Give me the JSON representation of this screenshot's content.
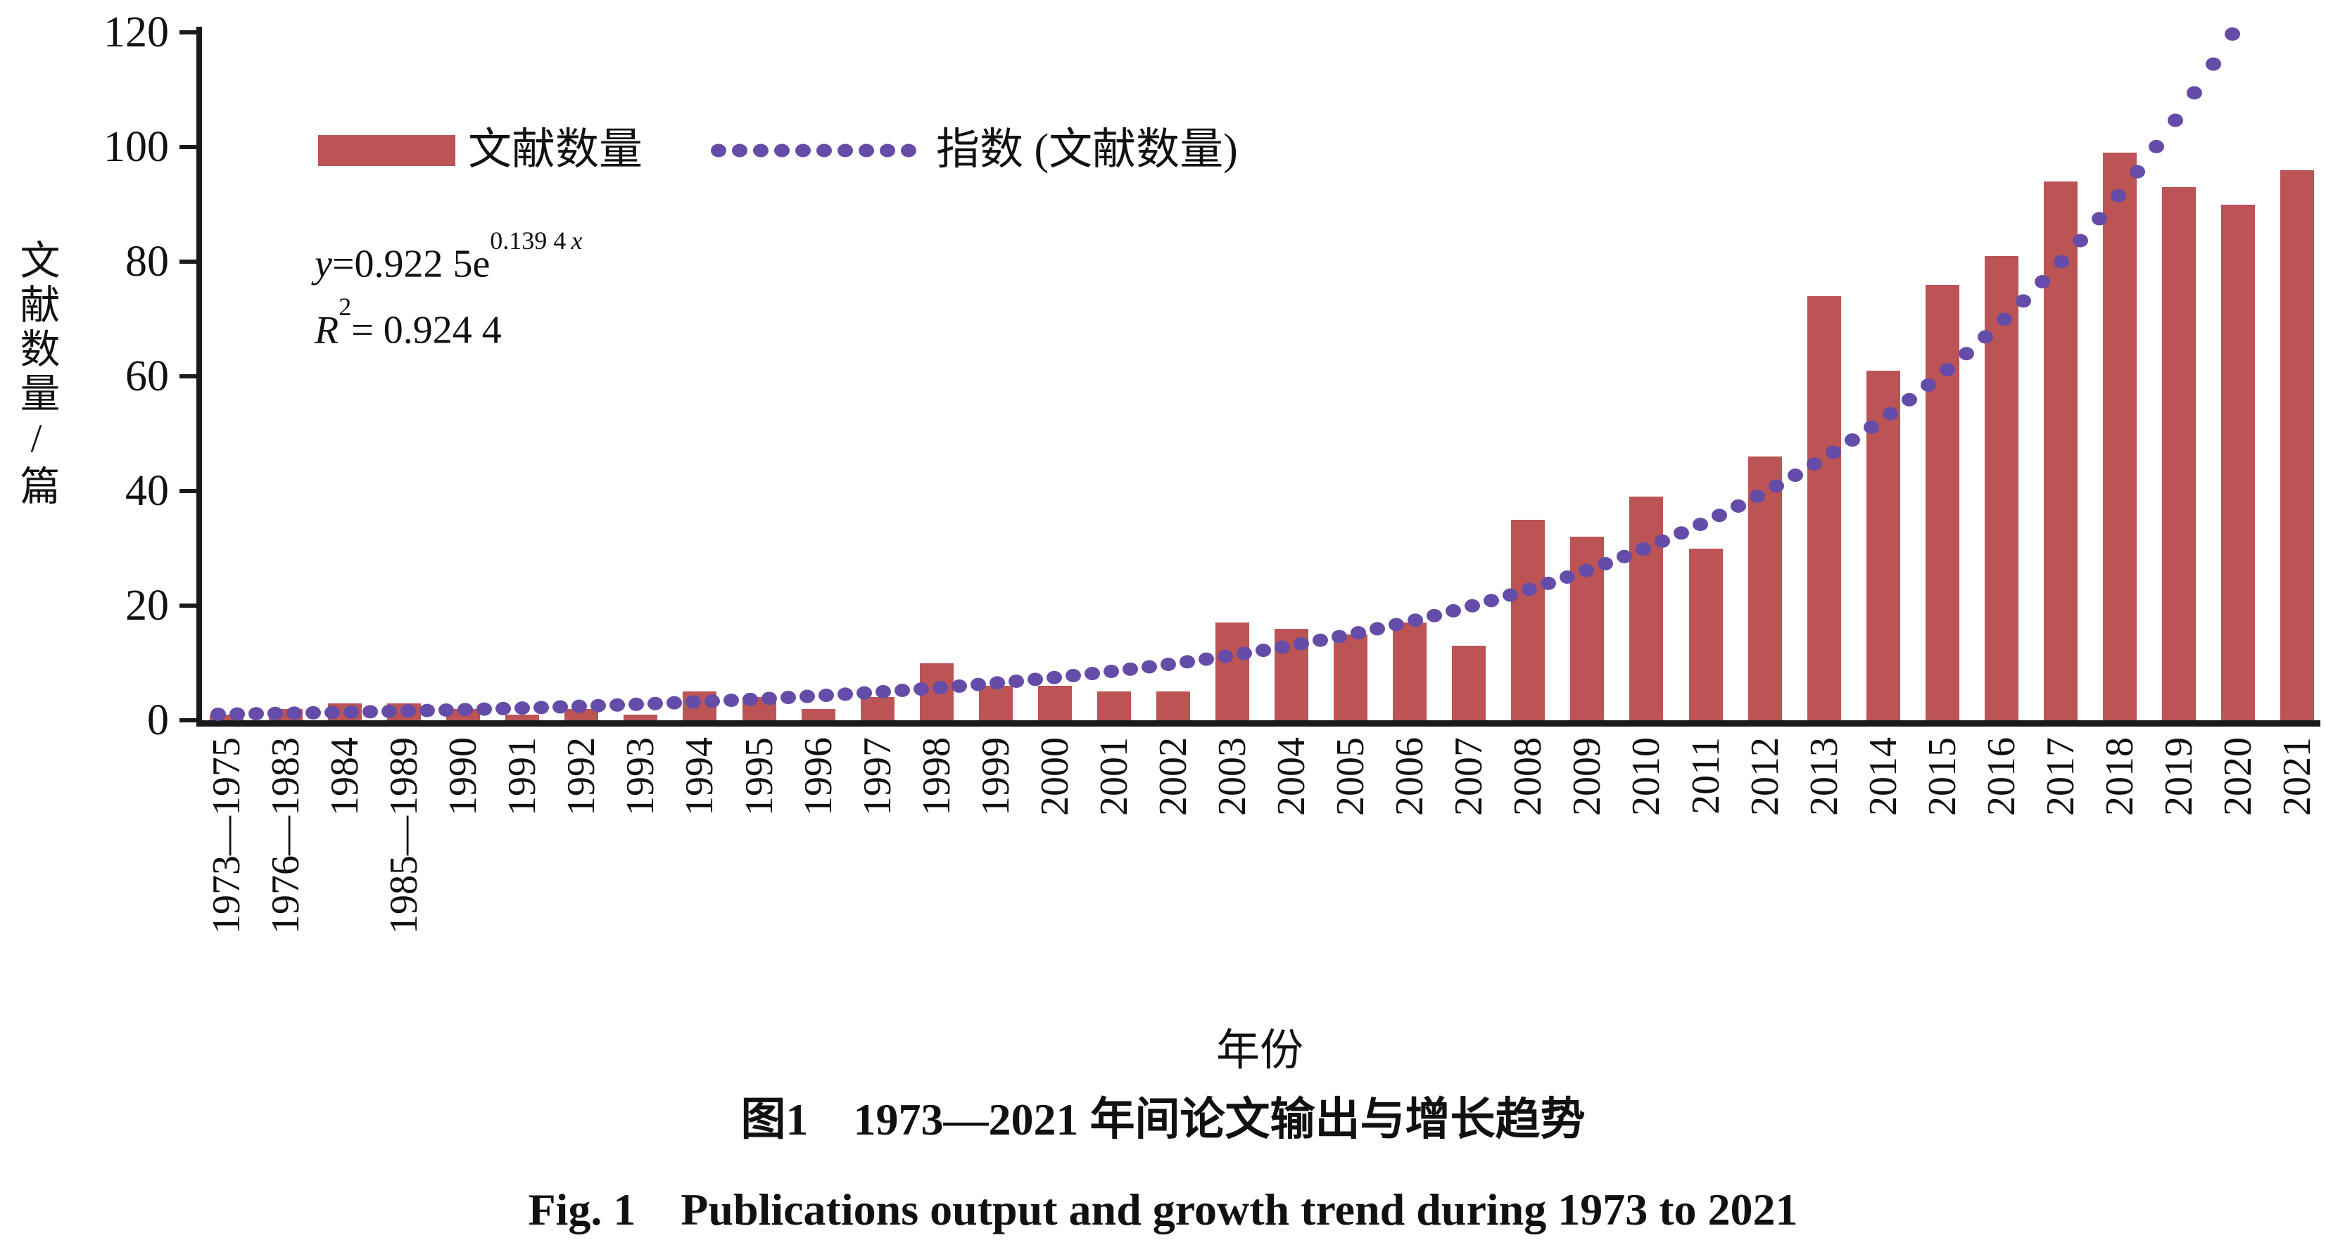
{
  "figure": {
    "x_axis_title": "年份",
    "y_axis_title": "文献数量/篇",
    "caption_zh": "图1　1973—2021 年间论文输出与增长趋势",
    "caption_en": "Fig. 1　Publications output and growth trend during 1973 to 2021"
  },
  "legend": {
    "bars_label": "文献数量",
    "trend_label": "指数 (文献数量)"
  },
  "equation": {
    "lhs": "y",
    "mid": "=0.922 5e",
    "exp_coef": "0.139 4",
    "exp_var": "x",
    "r2_sym": "R",
    "r2_sup": "2",
    "r2_rest": "= 0.924 4"
  },
  "chart_data": {
    "type": "bar",
    "title": "",
    "xlabel": "年份",
    "ylabel": "文献数量/篇",
    "ylim": [
      0,
      120
    ],
    "yticks": [
      0,
      20,
      40,
      60,
      80,
      100,
      120
    ],
    "grid": false,
    "legend_position": "inside-top-left",
    "categories": [
      "1973—1975",
      "1976—1983",
      "1984",
      "1985—1989",
      "1990",
      "1991",
      "1992",
      "1993",
      "1994",
      "1995",
      "1996",
      "1997",
      "1998",
      "1999",
      "2000",
      "2001",
      "2002",
      "2003",
      "2004",
      "2005",
      "2006",
      "2007",
      "2008",
      "2009",
      "2010",
      "2011",
      "2012",
      "2013",
      "2014",
      "2015",
      "2016",
      "2017",
      "2018",
      "2019",
      "2020",
      "2021"
    ],
    "values": [
      1,
      2,
      3,
      3,
      2,
      1,
      2,
      1,
      5,
      4,
      2,
      4,
      10,
      6,
      6,
      5,
      5,
      17,
      16,
      15,
      17,
      13,
      35,
      32,
      39,
      30,
      46,
      74,
      61,
      76,
      81,
      94,
      99,
      93,
      90,
      96
    ],
    "series": [
      {
        "name": "文献数量",
        "type": "bar",
        "values": [
          1,
          2,
          3,
          3,
          2,
          1,
          2,
          1,
          5,
          4,
          2,
          4,
          10,
          6,
          6,
          5,
          5,
          17,
          16,
          15,
          17,
          13,
          35,
          32,
          39,
          30,
          46,
          74,
          61,
          76,
          81,
          94,
          99,
          93,
          90,
          96
        ]
      },
      {
        "name": "指数 (文献数量)",
        "type": "exponential-trendline",
        "equation": "y=0.922 5e^(0.139 4x)",
        "a": 0.9225,
        "b": 0.1394,
        "r_squared": 0.9244,
        "style": "dotted"
      }
    ],
    "colors": {
      "bar": "#BC5456",
      "trend": "#654CA8",
      "axis": "#1A1A1A"
    }
  }
}
